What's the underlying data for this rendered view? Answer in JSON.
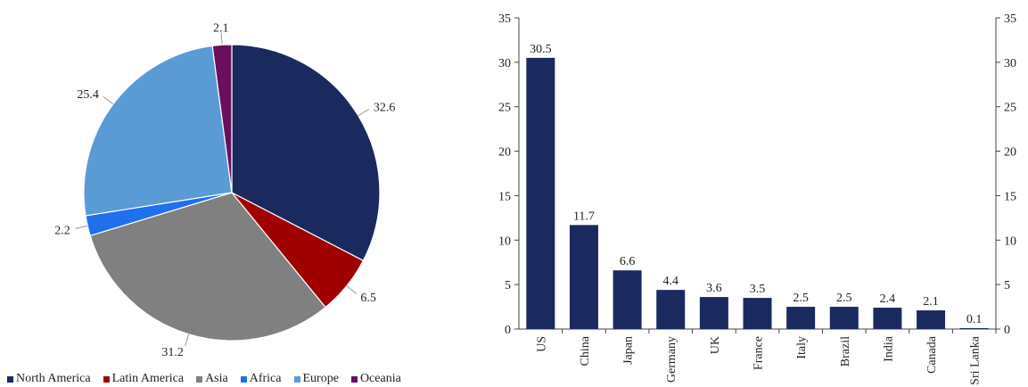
{
  "chart_data": [
    {
      "type": "pie",
      "legend_position": "bottom",
      "slices": [
        {
          "name": "North America",
          "value": 32.6,
          "label": "32.6",
          "color": "#1b2a5e"
        },
        {
          "name": "Latin America",
          "value": 6.5,
          "label": "6.5",
          "color": "#a00000"
        },
        {
          "name": "Asia",
          "value": 31.2,
          "label": "31.2",
          "color": "#808080"
        },
        {
          "name": "Africa",
          "value": 2.2,
          "label": "2.2",
          "color": "#1f6fef"
        },
        {
          "name": "Europe",
          "value": 25.4,
          "label": "25.4",
          "color": "#5b9bd5"
        },
        {
          "name": "Oceania",
          "value": 2.1,
          "label": "2.1",
          "color": "#6a0f5e"
        }
      ]
    },
    {
      "type": "bar",
      "categories": [
        "US",
        "China",
        "Japan",
        "Germany",
        "UK",
        "France",
        "Italy",
        "Brazil",
        "India",
        "Canada",
        "Sri Lanka"
      ],
      "values": [
        30.5,
        11.7,
        6.6,
        4.4,
        3.6,
        3.5,
        2.5,
        2.5,
        2.4,
        2.1,
        0.1
      ],
      "value_labels": [
        "30.5",
        "11.7",
        "6.6",
        "4.4",
        "3.6",
        "3.5",
        "2.5",
        "2.5",
        "2.4",
        "2.1",
        "0.1"
      ],
      "ylim": [
        0,
        35
      ],
      "yticks": [
        0,
        5,
        10,
        15,
        20,
        25,
        30,
        35
      ],
      "ytick_labels": [
        "0",
        "5",
        "10",
        "15",
        "20",
        "25",
        "30",
        "35"
      ],
      "color": "#1b2a5e",
      "grid": false
    }
  ]
}
